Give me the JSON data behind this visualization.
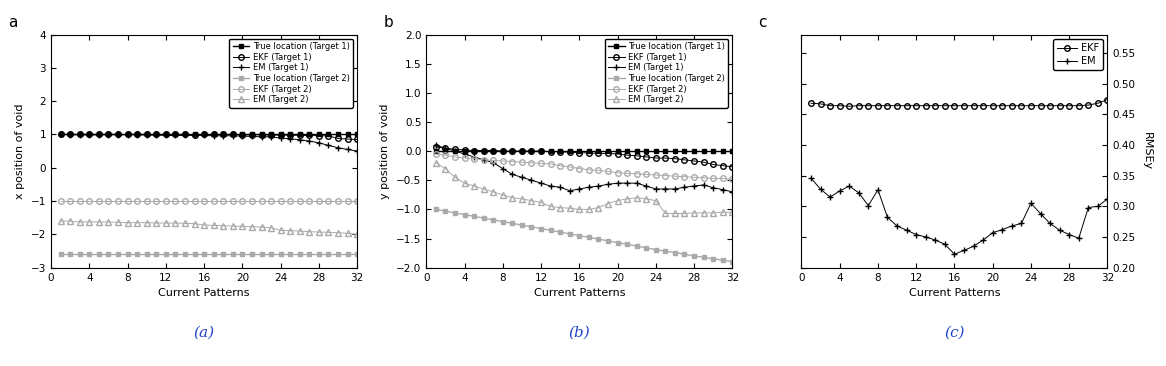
{
  "x": [
    1,
    2,
    3,
    4,
    5,
    6,
    7,
    8,
    9,
    10,
    11,
    12,
    13,
    14,
    15,
    16,
    17,
    18,
    19,
    20,
    21,
    22,
    23,
    24,
    25,
    26,
    27,
    28,
    29,
    30,
    31,
    32
  ],
  "a_true1": [
    1.0,
    1.0,
    1.0,
    1.0,
    1.0,
    1.0,
    1.0,
    1.0,
    1.0,
    1.0,
    1.0,
    1.0,
    1.0,
    1.0,
    1.0,
    1.0,
    1.0,
    1.0,
    1.0,
    1.0,
    1.0,
    1.0,
    1.0,
    1.0,
    1.0,
    1.0,
    1.0,
    1.0,
    1.0,
    1.0,
    1.0,
    1.0
  ],
  "a_ekf1": [
    1.0,
    1.01,
    1.0,
    1.01,
    1.0,
    1.01,
    1.0,
    1.0,
    1.01,
    1.0,
    1.0,
    1.0,
    1.0,
    1.0,
    0.99,
    1.0,
    1.0,
    1.0,
    1.0,
    0.99,
    0.99,
    0.99,
    0.98,
    0.98,
    0.98,
    0.97,
    0.97,
    0.96,
    0.96,
    0.88,
    0.86,
    0.85
  ],
  "a_em1": [
    1.0,
    0.99,
    0.99,
    0.98,
    0.99,
    0.99,
    0.99,
    0.99,
    0.99,
    0.98,
    0.98,
    0.97,
    0.97,
    0.97,
    0.97,
    0.97,
    0.96,
    0.96,
    0.96,
    0.95,
    0.94,
    0.93,
    0.93,
    0.89,
    0.87,
    0.84,
    0.8,
    0.75,
    0.67,
    0.6,
    0.55,
    0.5
  ],
  "a_true2": [
    -2.6,
    -2.6,
    -2.6,
    -2.6,
    -2.6,
    -2.6,
    -2.6,
    -2.6,
    -2.6,
    -2.6,
    -2.6,
    -2.6,
    -2.6,
    -2.6,
    -2.6,
    -2.6,
    -2.6,
    -2.6,
    -2.6,
    -2.6,
    -2.6,
    -2.6,
    -2.6,
    -2.6,
    -2.6,
    -2.6,
    -2.6,
    -2.6,
    -2.6,
    -2.6,
    -2.6,
    -2.6
  ],
  "a_ekf2": [
    -1.0,
    -1.0,
    -1.0,
    -1.0,
    -1.0,
    -1.0,
    -1.0,
    -1.0,
    -1.0,
    -1.0,
    -1.0,
    -1.0,
    -1.0,
    -1.0,
    -1.0,
    -1.0,
    -1.0,
    -1.0,
    -1.0,
    -1.0,
    -1.0,
    -1.0,
    -1.0,
    -1.0,
    -1.0,
    -1.0,
    -1.0,
    -1.0,
    -1.0,
    -1.0,
    -1.0,
    -1.0
  ],
  "a_em2": [
    -1.6,
    -1.6,
    -1.63,
    -1.62,
    -1.63,
    -1.63,
    -1.64,
    -1.65,
    -1.65,
    -1.65,
    -1.66,
    -1.66,
    -1.66,
    -1.67,
    -1.68,
    -1.72,
    -1.73,
    -1.74,
    -1.75,
    -1.76,
    -1.77,
    -1.78,
    -1.8,
    -1.88,
    -1.89,
    -1.9,
    -1.92,
    -1.93,
    -1.94,
    -1.95,
    -1.97,
    -2.0
  ],
  "b_true1": [
    0.0,
    0.0,
    0.0,
    0.0,
    0.0,
    0.0,
    0.0,
    0.0,
    0.0,
    0.0,
    0.0,
    0.0,
    0.0,
    0.0,
    0.0,
    0.0,
    0.0,
    0.0,
    0.0,
    0.0,
    0.0,
    0.0,
    0.0,
    0.0,
    0.0,
    0.0,
    0.0,
    0.0,
    0.0,
    0.0,
    0.0,
    0.0
  ],
  "b_ekf1": [
    0.07,
    0.05,
    0.03,
    0.02,
    0.01,
    0.01,
    0.01,
    0.0,
    0.0,
    0.0,
    0.0,
    0.0,
    -0.01,
    -0.01,
    -0.02,
    -0.03,
    -0.03,
    -0.04,
    -0.04,
    -0.05,
    -0.07,
    -0.08,
    -0.1,
    -0.12,
    -0.12,
    -0.13,
    -0.15,
    -0.17,
    -0.19,
    -0.23,
    -0.25,
    -0.27
  ],
  "b_em1": [
    0.1,
    0.05,
    0.0,
    -0.05,
    -0.1,
    -0.15,
    -0.2,
    -0.3,
    -0.4,
    -0.45,
    -0.5,
    -0.55,
    -0.6,
    -0.62,
    -0.68,
    -0.65,
    -0.62,
    -0.6,
    -0.57,
    -0.55,
    -0.55,
    -0.55,
    -0.6,
    -0.65,
    -0.65,
    -0.65,
    -0.62,
    -0.6,
    -0.58,
    -0.63,
    -0.66,
    -0.7
  ],
  "b_true2": [
    -1.0,
    -1.03,
    -1.06,
    -1.09,
    -1.12,
    -1.15,
    -1.18,
    -1.21,
    -1.24,
    -1.27,
    -1.3,
    -1.33,
    -1.36,
    -1.39,
    -1.42,
    -1.45,
    -1.48,
    -1.51,
    -1.54,
    -1.57,
    -1.6,
    -1.63,
    -1.66,
    -1.69,
    -1.72,
    -1.74,
    -1.77,
    -1.8,
    -1.82,
    -1.85,
    -1.87,
    -1.9
  ],
  "b_ekf2": [
    -0.05,
    -0.07,
    -0.1,
    -0.12,
    -0.13,
    -0.15,
    -0.16,
    -0.17,
    -0.18,
    -0.19,
    -0.2,
    -0.21,
    -0.22,
    -0.25,
    -0.27,
    -0.3,
    -0.32,
    -0.33,
    -0.35,
    -0.37,
    -0.38,
    -0.39,
    -0.4,
    -0.41,
    -0.42,
    -0.43,
    -0.44,
    -0.45,
    -0.46,
    -0.47,
    -0.47,
    -0.48
  ],
  "b_em2": [
    -0.2,
    -0.3,
    -0.45,
    -0.55,
    -0.6,
    -0.65,
    -0.7,
    -0.75,
    -0.8,
    -0.82,
    -0.85,
    -0.88,
    -0.95,
    -0.97,
    -0.98,
    -1.0,
    -1.0,
    -0.97,
    -0.9,
    -0.85,
    -0.82,
    -0.8,
    -0.82,
    -0.85,
    -1.07,
    -1.07,
    -1.07,
    -1.06,
    -1.06,
    -1.06,
    -1.05,
    -1.05
  ],
  "c_ekf": [
    0.468,
    0.467,
    0.464,
    0.464,
    0.463,
    0.464,
    0.464,
    0.464,
    0.464,
    0.464,
    0.464,
    0.464,
    0.464,
    0.464,
    0.464,
    0.464,
    0.464,
    0.464,
    0.464,
    0.464,
    0.464,
    0.464,
    0.464,
    0.464,
    0.464,
    0.464,
    0.464,
    0.464,
    0.464,
    0.465,
    0.468,
    0.474
  ],
  "c_em": [
    0.346,
    0.328,
    0.315,
    0.325,
    0.333,
    0.322,
    0.301,
    0.327,
    0.282,
    0.268,
    0.261,
    0.254,
    0.25,
    0.245,
    0.238,
    0.222,
    0.228,
    0.235,
    0.245,
    0.257,
    0.262,
    0.268,
    0.272,
    0.305,
    0.288,
    0.272,
    0.261,
    0.254,
    0.248,
    0.298,
    0.3,
    0.312
  ],
  "panel_labels": [
    "a",
    "b",
    "c"
  ],
  "subplot_labels": [
    "(a)",
    "(b)",
    "(c)"
  ],
  "ylabel_a": "x position of void",
  "ylabel_b": "y position of void",
  "ylabel_c": "RMSEy",
  "xlabel": "Current Patterns",
  "ylim_a": [
    -3,
    4
  ],
  "ylim_b": [
    -2,
    2
  ],
  "ylim_c": [
    0.2,
    0.58
  ],
  "yticks_a": [
    -3,
    -2,
    -1,
    0,
    1,
    2,
    3,
    4
  ],
  "yticks_b": [
    -2.0,
    -1.5,
    -1.0,
    -0.5,
    0.0,
    0.5,
    1.0,
    1.5,
    2.0
  ],
  "yticks_c": [
    0.2,
    0.25,
    0.3,
    0.35,
    0.4,
    0.45,
    0.5,
    0.55
  ],
  "xticks": [
    0,
    4,
    8,
    12,
    16,
    20,
    24,
    28,
    32
  ]
}
